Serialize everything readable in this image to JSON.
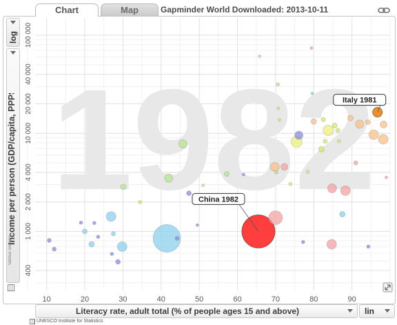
{
  "tabs": [
    {
      "label": "Chart",
      "active": true
    },
    {
      "label": "Map",
      "active": false
    }
  ],
  "source_title": "Gapminder World Downloaded: 2013-10-11",
  "y_scale_button": "log",
  "y_axis_title": "Income per person (GDP/capita, PPP$ inflation-a…",
  "y_source_note": "Various sources",
  "x_axis_title": "Literacy rate, adult total (% of people ages 15 and above)",
  "x_scale_button": "lin",
  "x_source_note": "UNESCO Institute for Statistics",
  "year_watermark": "1982",
  "chart_data": {
    "type": "scatter",
    "xlim": [
      7,
      100
    ],
    "ylim": [
      250,
      150000
    ],
    "y_scale": "log",
    "x_scale": "lin",
    "x_ticks": [
      "10",
      "20",
      "30",
      "40",
      "50",
      "60",
      "70",
      "80",
      "90"
    ],
    "y_ticks": [
      "400",
      "1 000",
      "2 000",
      "4 000",
      "10 000",
      "20 000",
      "40 000",
      "100 000"
    ],
    "x_tick_values": [
      10,
      20,
      30,
      40,
      50,
      60,
      70,
      80,
      90
    ],
    "y_tick_values": [
      400,
      1000,
      2000,
      4000,
      10000,
      20000,
      40000,
      100000
    ],
    "labels": [
      {
        "text": "Italy 1981",
        "point": [
          96.7,
          16400
        ]
      },
      {
        "text": "China 1982",
        "point": [
          65.5,
          1000
        ]
      }
    ],
    "points": [
      {
        "x": 10.7,
        "y": 810,
        "r": 3,
        "color": "#8b8bdc"
      },
      {
        "x": 12.0,
        "y": 660,
        "r": 3,
        "color": "#8b8bdc"
      },
      {
        "x": 19.0,
        "y": 1230,
        "r": 2.5,
        "color": "#8b8bdc"
      },
      {
        "x": 20.0,
        "y": 1000,
        "r": 3.5,
        "color": "#8cd0ec"
      },
      {
        "x": 21.8,
        "y": 740,
        "r": 4,
        "color": "#8cd0ec"
      },
      {
        "x": 22.5,
        "y": 1220,
        "r": 2.5,
        "color": "#8b8bdc"
      },
      {
        "x": 23.5,
        "y": 880,
        "r": 2.5,
        "color": "#8b8bdc"
      },
      {
        "x": 26.9,
        "y": 1420,
        "r": 7,
        "color": "#8cd0ec"
      },
      {
        "x": 27.5,
        "y": 950,
        "r": 3,
        "color": "#8cd0ec"
      },
      {
        "x": 27.1,
        "y": 590,
        "r": 2.5,
        "color": "#8b8bdc"
      },
      {
        "x": 28.7,
        "y": 490,
        "r": 3.5,
        "color": "#8b8bdc"
      },
      {
        "x": 29.8,
        "y": 700,
        "r": 7,
        "color": "#8cd0ec"
      },
      {
        "x": 30.1,
        "y": 2850,
        "r": 4,
        "color": "#b5e68f"
      },
      {
        "x": 34.5,
        "y": 1990,
        "r": 2.5,
        "color": "#d6e86a"
      },
      {
        "x": 41.5,
        "y": 850,
        "r": 20,
        "color": "#8cd0ec"
      },
      {
        "x": 44.2,
        "y": 850,
        "r": 3,
        "color": "#8b8bdc"
      },
      {
        "x": 42.0,
        "y": 3500,
        "r": 6,
        "color": "#b5e68f"
      },
      {
        "x": 45.7,
        "y": 7800,
        "r": 6,
        "color": "#b5e68f"
      },
      {
        "x": 47.3,
        "y": 2450,
        "r": 3.5,
        "color": "#8b8bdc"
      },
      {
        "x": 49.5,
        "y": 1160,
        "r": 2,
        "color": "#8b8bdc"
      },
      {
        "x": 51.0,
        "y": 2950,
        "r": 2,
        "color": "#b5e68f"
      },
      {
        "x": 57.2,
        "y": 3850,
        "r": 3.5,
        "color": "#b5e68f"
      },
      {
        "x": 61.6,
        "y": 3800,
        "r": 2,
        "color": "#8b8bdc"
      },
      {
        "x": 65.5,
        "y": 1000,
        "r": 24,
        "color": "#ff3434"
      },
      {
        "x": 65.8,
        "y": 61000,
        "r": 2,
        "color": "#b5e68f"
      },
      {
        "x": 70.0,
        "y": 1380,
        "r": 10,
        "color": "#f4a3a3"
      },
      {
        "x": 69.8,
        "y": 4550,
        "r": 6.5,
        "color": "#f9c089"
      },
      {
        "x": 70.2,
        "y": 4000,
        "r": 2.5,
        "color": "#b5e68f"
      },
      {
        "x": 70.6,
        "y": 31500,
        "r": 2.5,
        "color": "#b5e68f"
      },
      {
        "x": 70.7,
        "y": 18000,
        "r": 2,
        "color": "#d6e86a"
      },
      {
        "x": 71.0,
        "y": 13700,
        "r": 2,
        "color": "#d6e86a"
      },
      {
        "x": 72.3,
        "y": 4550,
        "r": 5,
        "color": "#f4a3a3"
      },
      {
        "x": 73.9,
        "y": 3050,
        "r": 2.5,
        "color": "#d6e86a"
      },
      {
        "x": 75.5,
        "y": 8200,
        "r": 8,
        "color": "#eef07a"
      },
      {
        "x": 76.1,
        "y": 9550,
        "r": 6,
        "color": "#8b8bdc"
      },
      {
        "x": 77.2,
        "y": 780,
        "r": 2.5,
        "color": "#8b8bdc"
      },
      {
        "x": 78.4,
        "y": 4050,
        "r": 2.5,
        "color": "#d6e86a"
      },
      {
        "x": 79.4,
        "y": 74000,
        "r": 2,
        "color": "#f4a3a3"
      },
      {
        "x": 79.6,
        "y": 25500,
        "r": 2,
        "color": "#8cd0ec"
      },
      {
        "x": 80.0,
        "y": 13200,
        "r": 4,
        "color": "#f9c089"
      },
      {
        "x": 82.5,
        "y": 13800,
        "r": 3,
        "color": "#d6e86a"
      },
      {
        "x": 82.0,
        "y": 6900,
        "r": 4,
        "color": "#d6e86a"
      },
      {
        "x": 83.0,
        "y": 8300,
        "r": 3,
        "color": "#d6e86a"
      },
      {
        "x": 83.8,
        "y": 10700,
        "r": 7.5,
        "color": "#eef07a"
      },
      {
        "x": 84.8,
        "y": 2750,
        "r": 6.5,
        "color": "#f4a3a3"
      },
      {
        "x": 84.7,
        "y": 740,
        "r": 7,
        "color": "#f4a3a3"
      },
      {
        "x": 85.5,
        "y": 12000,
        "r": 3.5,
        "color": "#d6e86a"
      },
      {
        "x": 86.3,
        "y": 10700,
        "r": 3,
        "color": "#d6e86a"
      },
      {
        "x": 86.6,
        "y": 8300,
        "r": 2.5,
        "color": "#d6e86a"
      },
      {
        "x": 87.5,
        "y": 1500,
        "r": 4,
        "color": "#8cd0ec"
      },
      {
        "x": 88.3,
        "y": 2600,
        "r": 7,
        "color": "#f4a3a3"
      },
      {
        "x": 89.6,
        "y": 14300,
        "r": 4,
        "color": "#f9c089"
      },
      {
        "x": 91.0,
        "y": 5000,
        "r": 3,
        "color": "#f4a3a3"
      },
      {
        "x": 92.0,
        "y": 12400,
        "r": 6,
        "color": "#f9c089"
      },
      {
        "x": 94.2,
        "y": 13000,
        "r": 3.5,
        "color": "#f9c089"
      },
      {
        "x": 94.3,
        "y": 700,
        "r": 2.5,
        "color": "#8b8bdc"
      },
      {
        "x": 95.7,
        "y": 9700,
        "r": 7,
        "color": "#f9c089"
      },
      {
        "x": 96.7,
        "y": 16400,
        "r": 7,
        "color": "#f08a1c"
      },
      {
        "x": 98.3,
        "y": 12300,
        "r": 5,
        "color": "#f9c089"
      },
      {
        "x": 98.2,
        "y": 8700,
        "r": 7,
        "color": "#f9c089"
      },
      {
        "x": 99.0,
        "y": 3550,
        "r": 2,
        "color": "#f4a3a3"
      }
    ]
  }
}
